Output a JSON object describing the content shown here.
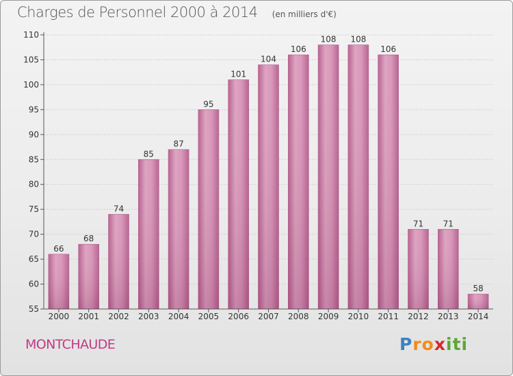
{
  "chart_data": {
    "type": "bar",
    "title": "Charges de Personnel 2000 à 2014",
    "subtitle": "(en milliers d'€)",
    "categories": [
      "2000",
      "2001",
      "2002",
      "2003",
      "2004",
      "2005",
      "2006",
      "2007",
      "2008",
      "2009",
      "2010",
      "2011",
      "2012",
      "2013",
      "2014"
    ],
    "values": [
      66,
      68,
      74,
      85,
      87,
      95,
      101,
      104,
      106,
      108,
      108,
      106,
      71,
      71,
      58
    ],
    "ylim": [
      55,
      110
    ],
    "yticks": [
      55,
      60,
      65,
      70,
      75,
      80,
      85,
      90,
      95,
      100,
      105,
      110
    ],
    "grid": true,
    "bar_color": "#c8699b",
    "bar_highlight": "#e8acc9"
  },
  "commune": "MONTCHAUDE",
  "brand": {
    "letters": [
      "P",
      "r",
      "o",
      "x",
      "i",
      "t",
      "i"
    ],
    "colors": [
      "#3b82c4",
      "#f08c1a",
      "#f08c1a",
      "#d6282a",
      "#5aa832",
      "#5aa832",
      "#5aa832"
    ]
  }
}
